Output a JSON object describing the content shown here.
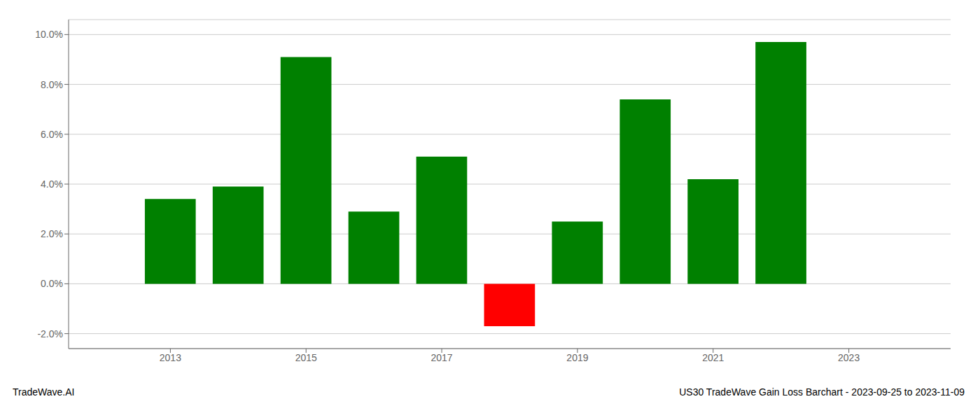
{
  "chart_data": {
    "type": "bar",
    "x": [
      2013,
      2014,
      2015,
      2016,
      2017,
      2018,
      2019,
      2020,
      2021,
      2022
    ],
    "values": [
      0.034,
      0.039,
      0.091,
      0.029,
      0.051,
      -0.017,
      0.025,
      0.074,
      0.042,
      0.097
    ],
    "colors": [
      "#008000",
      "#008000",
      "#008000",
      "#008000",
      "#008000",
      "#ff0000",
      "#008000",
      "#008000",
      "#008000",
      "#008000"
    ],
    "xlim": [
      2011.5,
      2024.5
    ],
    "xticks": [
      2013,
      2015,
      2017,
      2019,
      2021,
      2023
    ],
    "ylim": [
      -0.026,
      0.106
    ],
    "yticks": [
      {
        "value": -0.02,
        "label": "-2.0%"
      },
      {
        "value": 0.0,
        "label": "0.0%"
      },
      {
        "value": 0.02,
        "label": "2.0%"
      },
      {
        "value": 0.04,
        "label": "4.0%"
      },
      {
        "value": 0.06,
        "label": "6.0%"
      },
      {
        "value": 0.08,
        "label": "8.0%"
      },
      {
        "value": 0.1,
        "label": "10.0%"
      }
    ],
    "grid": true,
    "annotations": [
      "TradeWave.AI",
      "US30 TradeWave Gain Loss Barchart - 2023-09-25 to 2023-11-09"
    ]
  }
}
